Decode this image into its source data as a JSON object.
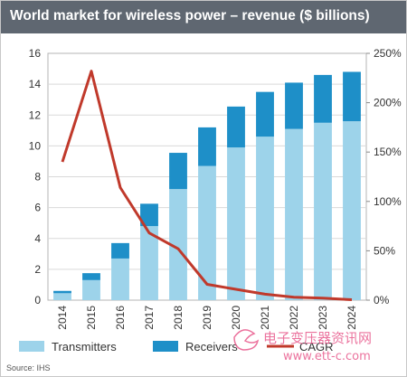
{
  "chart_data": {
    "type": "bar",
    "title": "World market for wireless power – revenue ($ billions)",
    "xlabel": "",
    "ylabel": "",
    "categories": [
      "2014",
      "2015",
      "2016",
      "2017",
      "2018",
      "2019",
      "2020",
      "2021",
      "2022",
      "2023",
      "2024"
    ],
    "series": [
      {
        "name": "Transmitters",
        "kind": "bar",
        "stack": "revenue",
        "axis": "left",
        "color": "#9dd3ea",
        "values": [
          0.45,
          1.3,
          2.7,
          4.8,
          7.2,
          8.7,
          9.9,
          10.6,
          11.1,
          11.5,
          11.6
        ]
      },
      {
        "name": "Receivers",
        "kind": "bar",
        "stack": "revenue",
        "axis": "left",
        "color": "#1e8fc8",
        "values": [
          0.15,
          0.45,
          1.0,
          1.45,
          2.35,
          2.5,
          2.65,
          2.9,
          3.0,
          3.1,
          3.2
        ]
      },
      {
        "name": "CAGR",
        "kind": "line",
        "axis": "right",
        "color": "#c0392b",
        "values": [
          140,
          232,
          114,
          68,
          52,
          16,
          11,
          6,
          3,
          2,
          0.5
        ]
      }
    ],
    "ylim": [
      0,
      16
    ],
    "yticks": [
      "0",
      "2",
      "4",
      "6",
      "8",
      "10",
      "12",
      "14",
      "16"
    ],
    "y2lim": [
      0,
      250
    ],
    "y2ticks": [
      "0%",
      "50%",
      "100%",
      "150%",
      "200%",
      "250%"
    ],
    "legend_position": "bottom",
    "grid": true
  },
  "source": "Source: IHS",
  "watermark": {
    "text": "电子变压器资讯网",
    "url": "www.ett-c.com"
  }
}
